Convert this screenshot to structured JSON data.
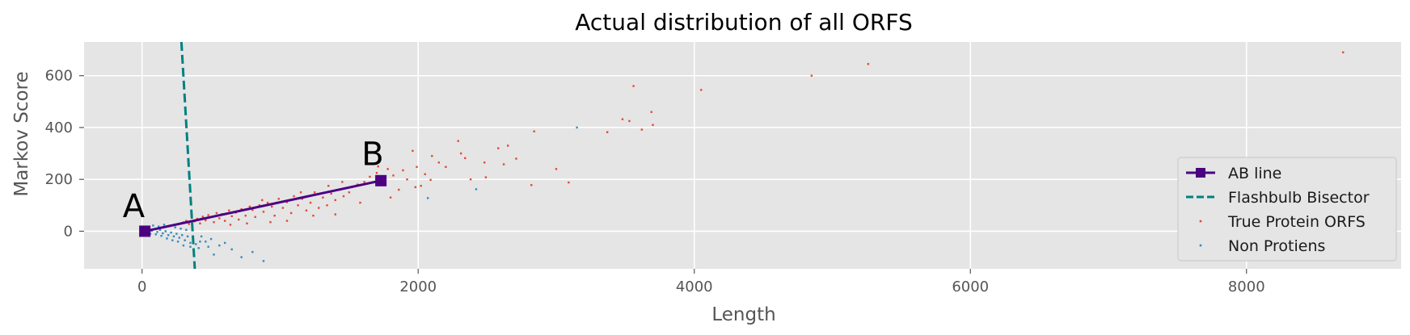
{
  "chart_data": {
    "type": "scatter",
    "title": "Actual distribution of all ORFS",
    "xlabel": "Length",
    "ylabel": "Markov Score",
    "xlim": [
      -420,
      9120
    ],
    "ylim": [
      -145,
      730
    ],
    "xticks": [
      0,
      2000,
      4000,
      6000,
      8000
    ],
    "yticks": [
      0,
      200,
      400,
      600
    ],
    "grid": true,
    "legend_position": "lower-right",
    "background_color": "#e5e5e5",
    "grid_color": "#ffffff",
    "series": [
      {
        "name": "AB line",
        "kind": "line-with-square-markers",
        "color": "#4b0082",
        "x": [
          20,
          1730
        ],
        "y": [
          0,
          195
        ]
      },
      {
        "name": "Flashbulb Bisector",
        "kind": "dashed-line",
        "color": "#008080",
        "x": [
          285,
          382
        ],
        "y": [
          730,
          -145
        ]
      },
      {
        "name": "True Protein ORFS",
        "kind": "scatter",
        "color": "#e24a33",
        "points": [
          [
            8700,
            690
          ],
          [
            5260,
            645
          ],
          [
            4850,
            600
          ],
          [
            4050,
            545
          ],
          [
            3560,
            560
          ],
          [
            3480,
            432
          ],
          [
            3530,
            425
          ],
          [
            3690,
            460
          ],
          [
            3700,
            410
          ],
          [
            3620,
            392
          ],
          [
            3370,
            382
          ],
          [
            2840,
            385
          ],
          [
            3000,
            240
          ],
          [
            3090,
            188
          ],
          [
            2820,
            178
          ],
          [
            2580,
            320
          ],
          [
            2650,
            330
          ],
          [
            2710,
            280
          ],
          [
            2620,
            258
          ],
          [
            2480,
            265
          ],
          [
            2490,
            208
          ],
          [
            2380,
            200
          ],
          [
            2290,
            348
          ],
          [
            2310,
            300
          ],
          [
            2340,
            282
          ],
          [
            2200,
            248
          ],
          [
            2150,
            265
          ],
          [
            2100,
            290
          ],
          [
            2090,
            198
          ],
          [
            2050,
            220
          ],
          [
            1960,
            310
          ],
          [
            1990,
            248
          ],
          [
            1980,
            170
          ],
          [
            1890,
            235
          ],
          [
            1860,
            160
          ],
          [
            1820,
            215
          ],
          [
            1780,
            240
          ],
          [
            1700,
            225
          ],
          [
            1610,
            190
          ],
          [
            1560,
            180
          ],
          [
            1520,
            170
          ],
          [
            1500,
            150
          ],
          [
            1460,
            135
          ],
          [
            1430,
            160
          ],
          [
            1400,
            120
          ],
          [
            1370,
            145
          ],
          [
            1340,
            100
          ],
          [
            1310,
            130
          ],
          [
            1280,
            90
          ],
          [
            1250,
            150
          ],
          [
            1220,
            110
          ],
          [
            1190,
            80
          ],
          [
            1160,
            125
          ],
          [
            1130,
            100
          ],
          [
            1100,
            135
          ],
          [
            1080,
            70
          ],
          [
            1050,
            112
          ],
          [
            1020,
            90
          ],
          [
            990,
            125
          ],
          [
            960,
            60
          ],
          [
            940,
            95
          ],
          [
            910,
            110
          ],
          [
            880,
            75
          ],
          [
            850,
            100
          ],
          [
            820,
            55
          ],
          [
            800,
            82
          ],
          [
            780,
            95
          ],
          [
            750,
            60
          ],
          [
            720,
            85
          ],
          [
            700,
            45
          ],
          [
            680,
            72
          ],
          [
            650,
            58
          ],
          [
            630,
            80
          ],
          [
            600,
            40
          ],
          [
            580,
            66
          ],
          [
            560,
            50
          ],
          [
            540,
            70
          ],
          [
            520,
            35
          ],
          [
            500,
            55
          ],
          [
            480,
            62
          ],
          [
            460,
            42
          ],
          [
            440,
            56
          ],
          [
            420,
            30
          ],
          [
            400,
            48
          ],
          [
            380,
            38
          ],
          [
            360,
            52
          ],
          [
            340,
            28
          ],
          [
            320,
            40
          ],
          [
            300,
            34
          ],
          [
            1650,
            210
          ],
          [
            1150,
            150
          ],
          [
            870,
            120
          ],
          [
            1450,
            190
          ],
          [
            1350,
            175
          ],
          [
            1710,
            250
          ],
          [
            1920,
            200
          ],
          [
            2020,
            175
          ],
          [
            1240,
            60
          ],
          [
            1050,
            40
          ],
          [
            930,
            35
          ],
          [
            760,
            30
          ],
          [
            640,
            25
          ],
          [
            1580,
            110
          ],
          [
            1400,
            65
          ],
          [
            1800,
            130
          ]
        ]
      },
      {
        "name": "Non Protiens",
        "kind": "scatter",
        "color": "#348abd",
        "points": [
          [
            3150,
            400
          ],
          [
            2420,
            162
          ],
          [
            2070,
            128
          ],
          [
            880,
            -115
          ],
          [
            720,
            -100
          ],
          [
            800,
            -80
          ],
          [
            650,
            -70
          ],
          [
            600,
            -45
          ],
          [
            560,
            -55
          ],
          [
            520,
            -90
          ],
          [
            480,
            -60
          ],
          [
            500,
            -30
          ],
          [
            460,
            -40
          ],
          [
            430,
            -20
          ],
          [
            410,
            -65
          ],
          [
            390,
            -50
          ],
          [
            370,
            -30
          ],
          [
            350,
            -45
          ],
          [
            330,
            -20
          ],
          [
            310,
            -35
          ],
          [
            290,
            -15
          ],
          [
            270,
            -25
          ],
          [
            250,
            -10
          ],
          [
            230,
            -20
          ],
          [
            210,
            -5
          ],
          [
            190,
            -15
          ],
          [
            170,
            0
          ],
          [
            150,
            -8
          ],
          [
            130,
            5
          ],
          [
            110,
            -3
          ],
          [
            90,
            8
          ],
          [
            70,
            2
          ],
          [
            50,
            10
          ],
          [
            30,
            0
          ],
          [
            200,
            20
          ],
          [
            240,
            15
          ],
          [
            280,
            10
          ],
          [
            320,
            5
          ],
          [
            160,
            25
          ],
          [
            120,
            18
          ],
          [
            80,
            22
          ],
          [
            60,
            -10
          ],
          [
            350,
            -60
          ],
          [
            300,
            -55
          ],
          [
            260,
            -40
          ],
          [
            220,
            -35
          ],
          [
            180,
            -28
          ],
          [
            140,
            -18
          ],
          [
            100,
            -12
          ],
          [
            420,
            -40
          ]
        ]
      }
    ],
    "annotations": [
      {
        "text": "A",
        "x": -140,
        "y": 55
      },
      {
        "text": "B",
        "x": 1590,
        "y": 255
      }
    ]
  }
}
